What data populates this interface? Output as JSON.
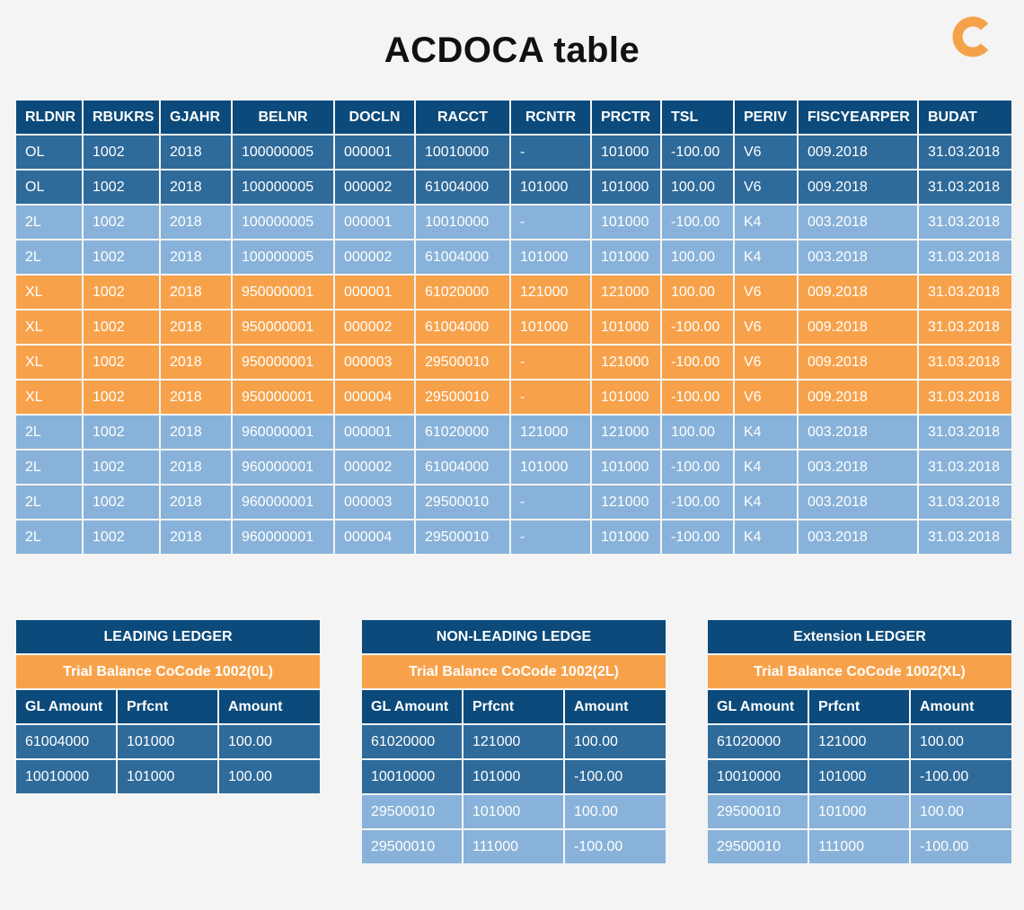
{
  "title": "ACDOCA table",
  "logo": {
    "icon": "c-logo-icon",
    "color": "#f4a24a"
  },
  "colors": {
    "header": "#0b4a7a",
    "ol": "#2e6a9a",
    "ledger2l": "#88b2d9",
    "xl": "#f7a24b"
  },
  "main_table": {
    "columns": [
      "RLDNR",
      "RBUKRS",
      "GJAHR",
      "BELNR",
      "DOCLN",
      "RACCT",
      "RCNTR",
      "PRCTR",
      "TSL",
      "PERIV",
      "FISCYEARPER",
      "BUDAT"
    ],
    "rows": [
      {
        "type": "OL",
        "cells": [
          "OL",
          "1002",
          "2018",
          "100000005",
          "000001",
          "10010000",
          "-",
          "101000",
          "-100.00",
          "V6",
          "009.2018",
          "31.03.2018"
        ]
      },
      {
        "type": "OL",
        "cells": [
          "OL",
          "1002",
          "2018",
          "100000005",
          "000002",
          "61004000",
          "101000",
          "101000",
          "100.00",
          "V6",
          "009.2018",
          "31.03.2018"
        ]
      },
      {
        "type": "L2",
        "cells": [
          "2L",
          "1002",
          "2018",
          "100000005",
          "000001",
          "10010000",
          "-",
          "101000",
          "-100.00",
          "K4",
          "003.2018",
          "31.03.2018"
        ]
      },
      {
        "type": "L2",
        "cells": [
          "2L",
          "1002",
          "2018",
          "100000005",
          "000002",
          "61004000",
          "101000",
          "101000",
          "100.00",
          "K4",
          "003.2018",
          "31.03.2018"
        ]
      },
      {
        "type": "XL",
        "cells": [
          "XL",
          "1002",
          "2018",
          "950000001",
          "000001",
          "61020000",
          "121000",
          "121000",
          "100.00",
          "V6",
          "009.2018",
          "31.03.2018"
        ]
      },
      {
        "type": "XL",
        "cells": [
          "XL",
          "1002",
          "2018",
          "950000001",
          "000002",
          "61004000",
          "101000",
          "101000",
          "-100.00",
          "V6",
          "009.2018",
          "31.03.2018"
        ]
      },
      {
        "type": "XL",
        "cells": [
          "XL",
          "1002",
          "2018",
          "950000001",
          "000003",
          "29500010",
          "-",
          "121000",
          "-100.00",
          "V6",
          "009.2018",
          "31.03.2018"
        ]
      },
      {
        "type": "XL",
        "cells": [
          "XL",
          "1002",
          "2018",
          "950000001",
          "000004",
          "29500010",
          "-",
          "101000",
          "-100.00",
          "V6",
          "009.2018",
          "31.03.2018"
        ]
      },
      {
        "type": "L2",
        "cells": [
          "2L",
          "1002",
          "2018",
          "960000001",
          "000001",
          "61020000",
          "121000",
          "121000",
          "100.00",
          "K4",
          "003.2018",
          "31.03.2018"
        ]
      },
      {
        "type": "L2",
        "cells": [
          "2L",
          "1002",
          "2018",
          "960000001",
          "000002",
          "61004000",
          "101000",
          "101000",
          "-100.00",
          "K4",
          "003.2018",
          "31.03.2018"
        ]
      },
      {
        "type": "L2",
        "cells": [
          "2L",
          "1002",
          "2018",
          "960000001",
          "000003",
          "29500010",
          "-",
          "121000",
          "-100.00",
          "K4",
          "003.2018",
          "31.03.2018"
        ]
      },
      {
        "type": "L2",
        "cells": [
          "2L",
          "1002",
          "2018",
          "960000001",
          "000004",
          "29500010",
          "-",
          "101000",
          "-100.00",
          "K4",
          "003.2018",
          "31.03.2018"
        ]
      }
    ]
  },
  "ledgers": [
    {
      "title": "LEADING LEDGER",
      "subtitle": "Trial Balance CoCode 1002(0L)",
      "columns": [
        "GL Amount",
        "Prfcnt",
        "Amount"
      ],
      "rows": [
        {
          "style": "dark",
          "cells": [
            "61004000",
            "101000",
            "100.00"
          ]
        },
        {
          "style": "dark",
          "cells": [
            "10010000",
            "101000",
            "100.00"
          ]
        }
      ]
    },
    {
      "title": "NON-LEADING LEDGE",
      "subtitle": "Trial Balance CoCode 1002(2L)",
      "columns": [
        "GL Amount",
        "Prfcnt",
        "Amount"
      ],
      "rows": [
        {
          "style": "dark",
          "cells": [
            "61020000",
            "121000",
            "100.00"
          ]
        },
        {
          "style": "dark",
          "cells": [
            "10010000",
            "101000",
            "-100.00"
          ]
        },
        {
          "style": "light",
          "cells": [
            "29500010",
            "101000",
            "100.00"
          ]
        },
        {
          "style": "light",
          "cells": [
            "29500010",
            "111000",
            "-100.00"
          ]
        }
      ]
    },
    {
      "title": "Extension LEDGER",
      "subtitle": "Trial Balance CoCode 1002(XL)",
      "columns": [
        "GL Amount",
        "Prfcnt",
        "Amount"
      ],
      "rows": [
        {
          "style": "dark",
          "cells": [
            "61020000",
            "121000",
            "100.00"
          ]
        },
        {
          "style": "dark",
          "cells": [
            "10010000",
            "101000",
            "-100.00"
          ]
        },
        {
          "style": "light",
          "cells": [
            "29500010",
            "101000",
            "100.00"
          ]
        },
        {
          "style": "light",
          "cells": [
            "29500010",
            "111000",
            "-100.00"
          ]
        }
      ]
    }
  ]
}
